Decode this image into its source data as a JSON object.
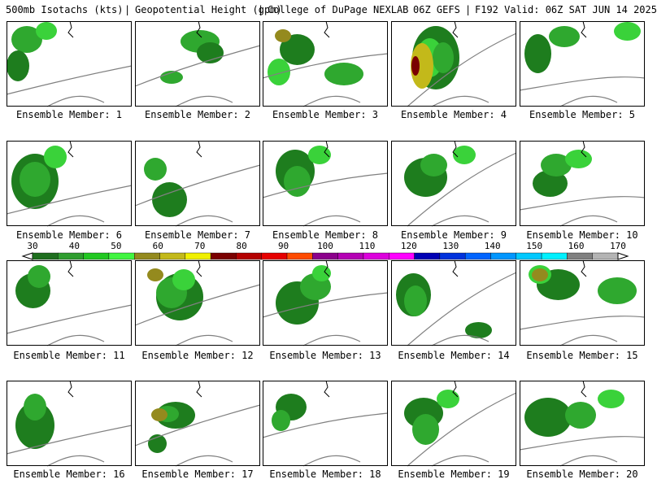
{
  "header": {
    "title_left": "500mb Isotachs (kts)",
    "title_mid": "Geopotential Height (gpm)",
    "title_source": "College of DuPage NEXLAB",
    "title_run": "06Z GEFS",
    "title_valid": "F192 Valid: 06Z SAT JUN 14 2025",
    "separator": "|"
  },
  "colorbar": {
    "labels": [
      "30",
      "40",
      "50",
      "60",
      "70",
      "80",
      "90",
      "100",
      "110",
      "120",
      "130",
      "140",
      "150",
      "160",
      "170"
    ],
    "colors": [
      "#1e6e1e",
      "#2f9e2f",
      "#22c822",
      "#41f541",
      "#948a1e",
      "#c3b91a",
      "#f0f000",
      "#7a0000",
      "#b40000",
      "#e60000",
      "#ff4b00",
      "#8b008b",
      "#b400b4",
      "#dc00dc",
      "#ff00ff",
      "#0000b4",
      "#0032dc",
      "#0064ff",
      "#0096ff",
      "#00c8ff",
      "#00f0ff",
      "#808080",
      "#b4b4b4"
    ]
  },
  "panels": [
    {
      "caption": "Ensemble Member: 1"
    },
    {
      "caption": "Ensemble Member: 2"
    },
    {
      "caption": "Ensemble Member: 3"
    },
    {
      "caption": "Ensemble Member: 4"
    },
    {
      "caption": "Ensemble Member: 5"
    },
    {
      "caption": "Ensemble Member: 6"
    },
    {
      "caption": "Ensemble Member: 7"
    },
    {
      "caption": "Ensemble Member: 8"
    },
    {
      "caption": "Ensemble Member: 9"
    },
    {
      "caption": "Ensemble Member: 10"
    },
    {
      "caption": "Ensemble Member: 11"
    },
    {
      "caption": "Ensemble Member: 12"
    },
    {
      "caption": "Ensemble Member: 13"
    },
    {
      "caption": "Ensemble Member: 14"
    },
    {
      "caption": "Ensemble Member: 15"
    },
    {
      "caption": "Ensemble Member: 16"
    },
    {
      "caption": "Ensemble Member: 17"
    },
    {
      "caption": "Ensemble Member: 18"
    },
    {
      "caption": "Ensemble Member: 19"
    },
    {
      "caption": "Ensemble Member: 20"
    }
  ]
}
